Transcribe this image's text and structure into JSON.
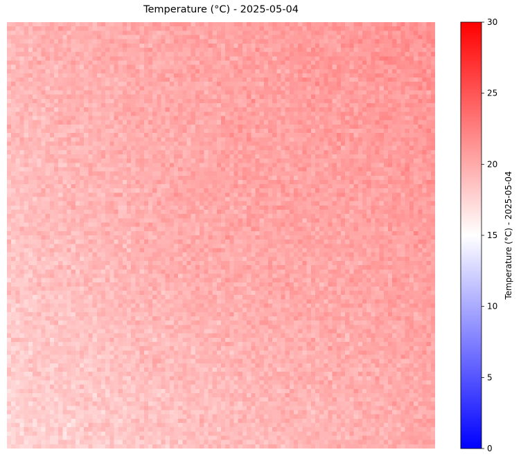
{
  "chart_data": {
    "type": "heatmap",
    "title": "Temperature (°C) - 2025-05-04",
    "grid_rows": 100,
    "grid_cols": 100,
    "value_field_description_estimates": {
      "bottom_left": 17.5,
      "top_left": 19.5,
      "top_right": 21.5,
      "bottom_right": 20.0,
      "center": 21.0,
      "noise_amplitude": 1.2
    },
    "colorbar": {
      "label": "Temperature (°C) - 2025-05-04",
      "vmin": 0,
      "vmax": 30,
      "ticks": [
        0,
        5,
        10,
        15,
        20,
        25,
        30
      ],
      "colormap": [
        "#0000ff",
        "#ffffff",
        "#ff0000"
      ]
    },
    "axes_visible": false,
    "grid": false
  }
}
